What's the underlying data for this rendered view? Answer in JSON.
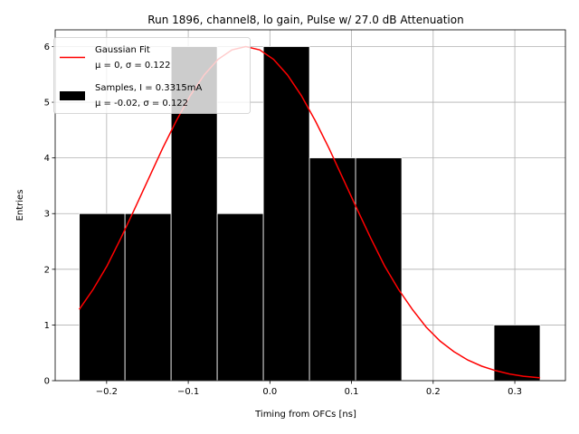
{
  "chart_data": {
    "type": "bar",
    "title": "Run 1896, channel8, lo gain, Pulse w/ 27.0 dB Attenuation",
    "xlabel": "Timing from OFCs [ns]",
    "ylabel": "Entries",
    "xlim": [
      -0.263,
      0.362
    ],
    "ylim": [
      0,
      6.3
    ],
    "xticks": [
      -0.2,
      -0.1,
      0.0,
      0.1,
      0.2,
      0.3
    ],
    "xtick_labels": [
      "−0.2",
      "−0.1",
      "0.0",
      "0.1",
      "0.2",
      "0.3"
    ],
    "yticks": [
      0,
      1,
      2,
      3,
      4,
      5,
      6
    ],
    "ytick_labels": [
      "0",
      "1",
      "2",
      "3",
      "4",
      "5",
      "6"
    ],
    "grid": true,
    "legend_position": "top-left",
    "histogram": {
      "name": "Samples, I = 0.3315mA",
      "stats": "μ = -0.02, σ = 0.122",
      "color": "#000000",
      "bins": [
        {
          "x0": -0.2335,
          "x1": -0.1775,
          "value": 3
        },
        {
          "x0": -0.1775,
          "x1": -0.121,
          "value": 3
        },
        {
          "x0": -0.121,
          "x1": -0.0645,
          "value": 6
        },
        {
          "x0": -0.0645,
          "x1": -0.008,
          "value": 3
        },
        {
          "x0": -0.008,
          "x1": 0.0485,
          "value": 6
        },
        {
          "x0": 0.0485,
          "x1": 0.105,
          "value": 4
        },
        {
          "x0": 0.105,
          "x1": 0.1615,
          "value": 4
        },
        {
          "x0": 0.1615,
          "x1": 0.218,
          "value": 0
        },
        {
          "x0": 0.218,
          "x1": 0.2745,
          "value": 0
        },
        {
          "x0": 0.2745,
          "x1": 0.331,
          "value": 1
        }
      ]
    },
    "fit": {
      "name": "Gaussian Fit",
      "stats": "μ = 0, σ = 0.122",
      "color": "#ff0000",
      "x": [
        -0.2335,
        -0.2165,
        -0.1995,
        -0.1825,
        -0.1655,
        -0.1485,
        -0.1315,
        -0.1145,
        -0.0975,
        -0.0805,
        -0.0635,
        -0.0465,
        -0.0295,
        -0.0125,
        0.0045,
        0.0215,
        0.0385,
        0.0555,
        0.0725,
        0.0895,
        0.1065,
        0.1235,
        0.1405,
        0.1575,
        0.1745,
        0.1915,
        0.2085,
        0.2255,
        0.2425,
        0.2595,
        0.2765,
        0.2935,
        0.3105,
        0.331
      ],
      "y": [
        1.28,
        1.64,
        2.06,
        2.56,
        3.09,
        3.63,
        4.17,
        4.67,
        5.12,
        5.49,
        5.77,
        5.94,
        6.0,
        5.94,
        5.77,
        5.49,
        5.12,
        4.67,
        4.17,
        3.63,
        3.09,
        2.56,
        2.06,
        1.64,
        1.28,
        0.96,
        0.71,
        0.52,
        0.37,
        0.26,
        0.18,
        0.12,
        0.08,
        0.05
      ]
    }
  }
}
